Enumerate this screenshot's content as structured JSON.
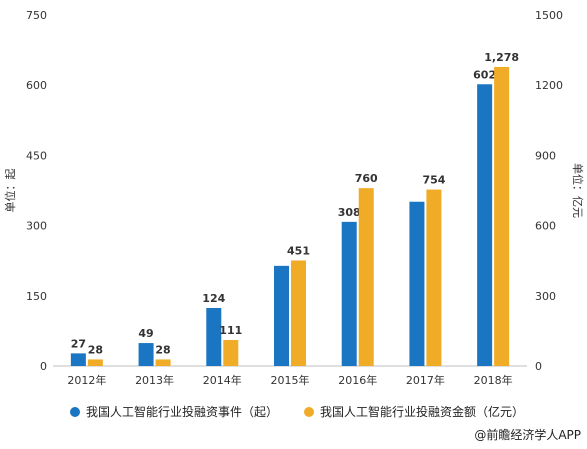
{
  "chart_data": {
    "type": "bar",
    "categories": [
      "2012年",
      "2013年",
      "2014年",
      "2015年",
      "2016年",
      "2017年",
      "2018年"
    ],
    "series": [
      {
        "name": "我国人工智能行业投融资事件（起）",
        "axis": "left",
        "color": "#1a75c2",
        "values": [
          27,
          49,
          124,
          214,
          308,
          351,
          602
        ],
        "labels": [
          "27",
          "49",
          "124",
          "",
          "308",
          "",
          "602"
        ]
      },
      {
        "name": "我国人工智能行业投融资金额（亿元）",
        "axis": "right",
        "color": "#f0ab27",
        "values": [
          28,
          28,
          111,
          451,
          760,
          754,
          1278
        ],
        "labels": [
          "28",
          "28",
          "111",
          "451",
          "760",
          "754",
          "1,278"
        ]
      }
    ],
    "ylabel_left": "单位：起",
    "ylabel_right": "单位：亿元",
    "ylim_left": [
      0,
      750
    ],
    "ylim_right": [
      0,
      1500
    ],
    "yticks_left": [
      0,
      150,
      300,
      450,
      600,
      750
    ],
    "yticks_right": [
      0,
      300,
      600,
      900,
      1200,
      1500
    ],
    "grid": false,
    "legend_position": "bottom"
  },
  "source": {
    "text": "@前瞻经济学人APP"
  }
}
